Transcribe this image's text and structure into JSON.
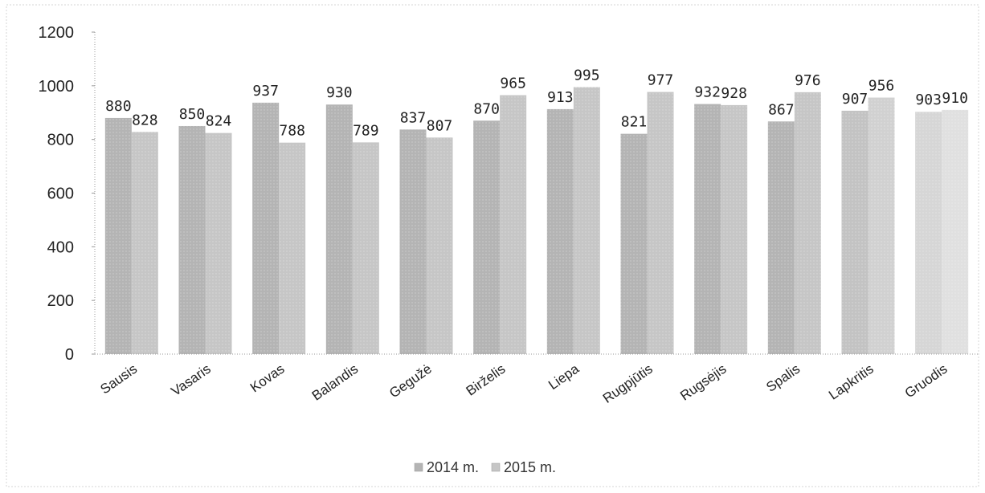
{
  "chart_data": {
    "type": "bar",
    "categories": [
      "Sausis",
      "Vasaris",
      "Kovas",
      "Balandis",
      "Gegužė",
      "Birželis",
      "Liepa",
      "Rugpjūtis",
      "Rugsėjis",
      "Spalis",
      "Lapkritis",
      "Gruodis"
    ],
    "series": [
      {
        "name": "2014 m.",
        "values": [
          880,
          850,
          937,
          930,
          837,
          870,
          913,
          821,
          932,
          867,
          907,
          903
        ]
      },
      {
        "name": "2015 m.",
        "values": [
          828,
          824,
          788,
          789,
          807,
          965,
          995,
          977,
          928,
          976,
          956,
          910
        ]
      }
    ],
    "yticks": [
      "0",
      "200",
      "400",
      "600",
      "800",
      "1000",
      "1200"
    ],
    "ylim": [
      0,
      1200
    ],
    "grid": false,
    "legend": "bottom",
    "colors": {
      "series_2014": "#b4b4b4",
      "series_2015": "#c6c6c6",
      "axis": "#9a9a9a"
    }
  }
}
